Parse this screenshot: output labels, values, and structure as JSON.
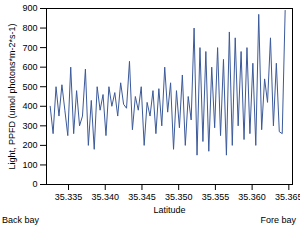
{
  "chart_data": {
    "type": "line",
    "x_label": "Latitude",
    "y_label": "Light, PPFD (umol photons*m-2*s-1)",
    "annotations": [
      "Back bay",
      "Fore bay"
    ],
    "color": "#3c5a9a",
    "grid": false,
    "xlim": [
      35.332,
      35.3655
    ],
    "xticks": [
      35.335,
      {
        "value": 35.34,
        "label": "35.340"
      },
      35.345,
      {
        "value": 35.35,
        "label": "35.350"
      },
      35.355,
      {
        "value": 35.36,
        "label": "35.360"
      },
      35.365
    ],
    "ylim": [
      0,
      900
    ],
    "yticks": [
      0,
      100,
      200,
      300,
      400,
      500,
      600,
      700,
      800,
      900
    ],
    "x": [
      35.3325,
      35.3329,
      35.3333,
      35.3337,
      35.3341,
      35.3345,
      35.3349,
      35.3353,
      35.3357,
      35.3361,
      35.3365,
      35.3369,
      35.3373,
      35.3377,
      35.3381,
      35.3385,
      35.3389,
      35.3393,
      35.3397,
      35.3401,
      35.3405,
      35.3409,
      35.3413,
      35.3417,
      35.3421,
      35.3425,
      35.3429,
      35.3433,
      35.3437,
      35.3441,
      35.3445,
      35.3449,
      35.3453,
      35.3457,
      35.3461,
      35.3465,
      35.3469,
      35.3473,
      35.3477,
      35.3481,
      35.3485,
      35.3489,
      35.3493,
      35.3497,
      35.3501,
      35.3505,
      35.3509,
      35.3513,
      35.3517,
      35.3521,
      35.3525,
      35.3529,
      35.3533,
      35.3537,
      35.3541,
      35.3545,
      35.3549,
      35.3553,
      35.3557,
      35.3561,
      35.3565,
      35.3569,
      35.3573,
      35.3577,
      35.3581,
      35.3585,
      35.3589,
      35.3593,
      35.3597,
      35.3601,
      35.3605,
      35.3609,
      35.3613,
      35.3617,
      35.3621,
      35.3625,
      35.3629,
      35.3633,
      35.3637,
      35.3641,
      35.3645
    ],
    "values": [
      400,
      260,
      500,
      350,
      510,
      380,
      250,
      600,
      260,
      480,
      300,
      350,
      590,
      200,
      430,
      180,
      500,
      380,
      460,
      250,
      500,
      400,
      470,
      350,
      520,
      410,
      390,
      630,
      280,
      450,
      380,
      500,
      200,
      420,
      350,
      480,
      260,
      490,
      300,
      600,
      370,
      520,
      180,
      480,
      290,
      560,
      200,
      450,
      330,
      800,
      150,
      700,
      220,
      680,
      170,
      600,
      290,
      700,
      250,
      640,
      150,
      780,
      200,
      750,
      300,
      680,
      230,
      700,
      260,
      620,
      200,
      870,
      280,
      540,
      420,
      750,
      300,
      620,
      270,
      260,
      890
    ]
  }
}
